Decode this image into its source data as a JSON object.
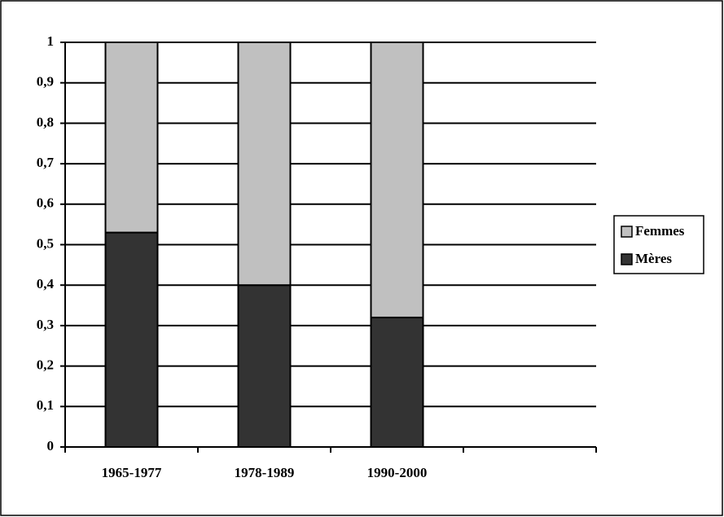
{
  "chart_data": {
    "type": "stacked_bar",
    "categories": [
      "1965-1977",
      "1978-1989",
      "1990-2000",
      null
    ],
    "series": [
      {
        "name": "Mères",
        "color": "#333333",
        "values": [
          0.53,
          0.4,
          0.32,
          null
        ]
      },
      {
        "name": "Femmes",
        "color": "#c0c0c0",
        "values": [
          0.47,
          0.6,
          0.68,
          null
        ]
      }
    ],
    "ylim": [
      0,
      1
    ],
    "yticks": [
      0,
      {
        "value": 0.1,
        "label": "0,1"
      },
      {
        "value": 0.2,
        "label": "0,2"
      },
      {
        "value": 0.3,
        "label": "0,3"
      },
      {
        "value": 0.4,
        "label": "0,4"
      },
      {
        "value": 0.5,
        "label": "0,5"
      },
      {
        "value": 0.6,
        "label": "0,6"
      },
      {
        "value": 0.7,
        "label": "0,7"
      },
      {
        "value": 0.8,
        "label": "0,8"
      },
      {
        "value": 0.9,
        "label": "0,9"
      },
      1
    ],
    "grid": true,
    "legend": "right"
  }
}
